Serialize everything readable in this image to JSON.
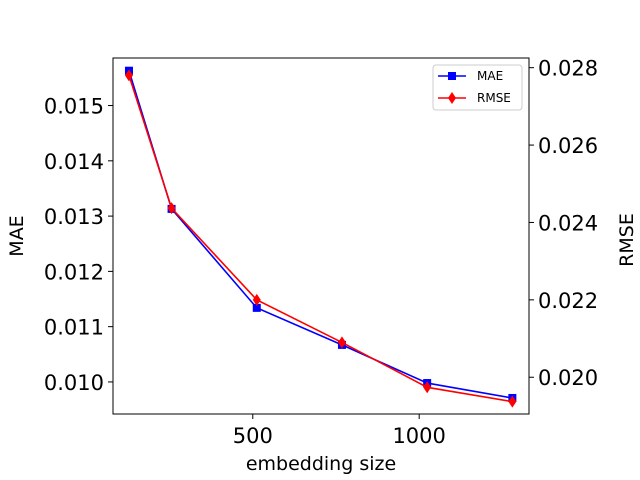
{
  "chart_data": {
    "type": "line",
    "x": [
      128,
      256,
      512,
      768,
      1024,
      1280
    ],
    "xlabel": "embedding size",
    "xlim": [
      80,
      1330
    ],
    "xticks": [
      500,
      1000
    ],
    "grid": false,
    "legend": {
      "placement": "top-right"
    },
    "left_axis": {
      "label": "MAE",
      "ylim": [
        0.00942,
        0.01586
      ],
      "ticks": [
        "0.010",
        "0.011",
        "0.012",
        "0.013",
        "0.014",
        "0.015"
      ]
    },
    "right_axis": {
      "label": "RMSE",
      "ylim": [
        0.01905,
        0.02825
      ],
      "ticks": [
        "0.020",
        "0.022",
        "0.024",
        "0.026",
        "0.028"
      ]
    },
    "series": [
      {
        "name": "MAE",
        "axis": "left",
        "color": "#0000ff",
        "marker": "square",
        "values": [
          0.01563,
          0.01313,
          0.01134,
          0.01067,
          0.00998,
          0.00971
        ]
      },
      {
        "name": "RMSE",
        "axis": "right",
        "color": "#ff0000",
        "marker": "diamond",
        "values": [
          0.0278,
          0.02437,
          0.022,
          0.0209,
          0.01974,
          0.01937
        ]
      }
    ]
  }
}
